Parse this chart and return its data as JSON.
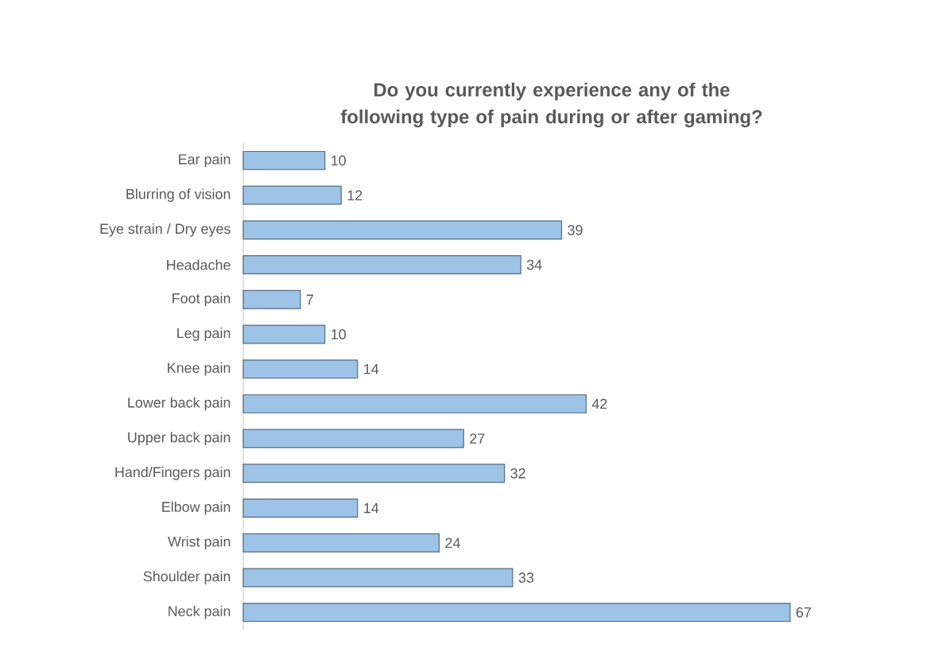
{
  "chart_data": {
    "type": "bar",
    "orientation": "horizontal",
    "title": "Do you currently experience any of the following type of pain during or after gaming?",
    "categories": [
      "Ear pain",
      "Blurring of vision",
      "Eye strain / Dry eyes",
      "Headache",
      "Foot pain",
      "Leg pain",
      "Knee pain",
      "Lower back pain",
      "Upper back pain",
      "Hand/Fingers pain",
      "Elbow pain",
      "Wrist pain",
      "Shoulder pain",
      "Neck pain"
    ],
    "values": [
      10,
      12,
      39,
      34,
      7,
      10,
      14,
      42,
      27,
      32,
      14,
      24,
      33,
      67
    ],
    "color": "#9dc3e6",
    "data_labels": true
  }
}
